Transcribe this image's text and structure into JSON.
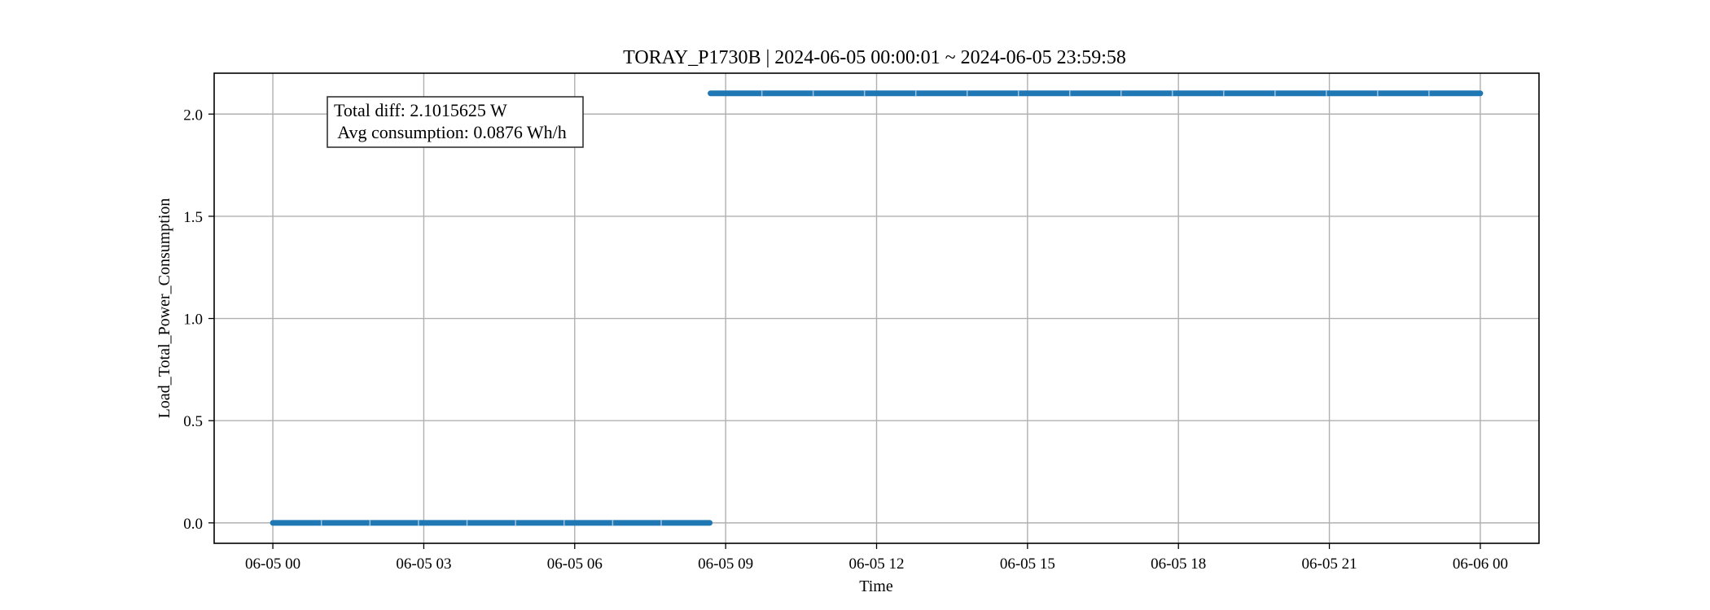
{
  "chart_data": {
    "type": "line",
    "title": "TORAY_P1730B | 2024-06-05 00:00:01 ~ 2024-06-05 23:59:58",
    "xlabel": "Time",
    "ylabel": "Load_Total_Power_Consumption",
    "xlim": [
      "2024-06-04T22:50:00",
      "2024-06-06T01:10:00"
    ],
    "ylim": [
      -0.1,
      2.2
    ],
    "x_ticks": [
      {
        "value": "2024-06-05T00:00:00",
        "label": "06-05 00"
      },
      {
        "value": "2024-06-05T03:00:00",
        "label": "06-05 03"
      },
      {
        "value": "2024-06-05T06:00:00",
        "label": "06-05 06"
      },
      {
        "value": "2024-06-05T09:00:00",
        "label": "06-05 09"
      },
      {
        "value": "2024-06-05T12:00:00",
        "label": "06-05 12"
      },
      {
        "value": "2024-06-05T15:00:00",
        "label": "06-05 15"
      },
      {
        "value": "2024-06-05T18:00:00",
        "label": "06-05 18"
      },
      {
        "value": "2024-06-05T21:00:00",
        "label": "06-05 21"
      },
      {
        "value": "2024-06-06T00:00:00",
        "label": "06-06 00"
      }
    ],
    "y_ticks": [
      {
        "value": 0.0,
        "label": "0.0"
      },
      {
        "value": 0.5,
        "label": "0.5"
      },
      {
        "value": 1.0,
        "label": "1.0"
      },
      {
        "value": 1.5,
        "label": "1.5"
      },
      {
        "value": 2.0,
        "label": "2.0"
      }
    ],
    "grid": true,
    "series": [
      {
        "color": "#1f77b4",
        "points": [
          {
            "x": "2024-06-05T00:00:01",
            "y": 0.0
          },
          {
            "x": "2024-06-05T08:41:00",
            "y": 0.0
          },
          {
            "x": "2024-06-05T08:42:00",
            "y": 2.1015625
          },
          {
            "x": "2024-06-05T23:59:58",
            "y": 2.1015625
          }
        ]
      }
    ],
    "annotation": {
      "lines": [
        "Total diff: 2.1015625 W",
        " Avg consumption: 0.0876 Wh/h"
      ],
      "position": "top-left"
    }
  }
}
